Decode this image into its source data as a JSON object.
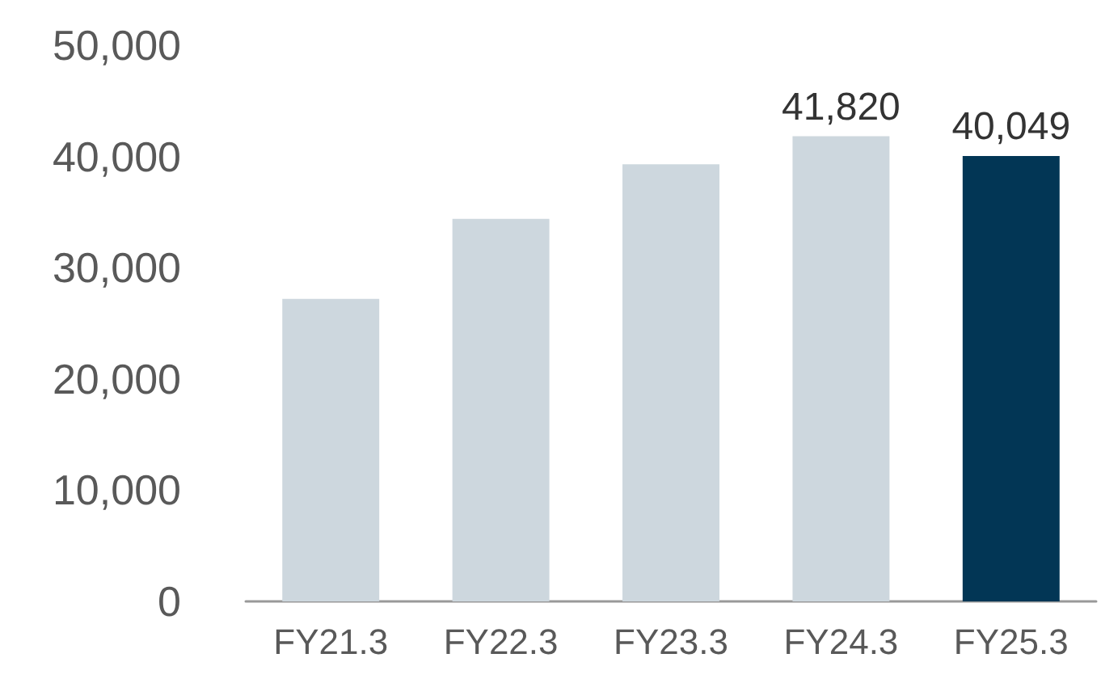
{
  "chart_data": {
    "type": "bar",
    "categories": [
      "FY21.3",
      "FY22.3",
      "FY23.3",
      "FY24.3",
      "FY25.3"
    ],
    "values": [
      27200,
      34400,
      39300,
      41820,
      40049
    ],
    "colors": [
      "#cdd7de",
      "#cdd7de",
      "#cdd7de",
      "#cdd7de",
      "#023655"
    ],
    "value_labels": [
      null,
      null,
      null,
      "41,820",
      "40,049"
    ],
    "ylim": [
      0,
      50000
    ],
    "yticks": [
      0,
      {
        "value": 10000,
        "label": "10,000"
      },
      {
        "value": 20000,
        "label": "20,000"
      },
      {
        "value": 30000,
        "label": "30,000"
      },
      {
        "value": 40000,
        "label": "40,000"
      },
      {
        "value": 50000,
        "label": "50,000"
      }
    ],
    "grid": false
  }
}
